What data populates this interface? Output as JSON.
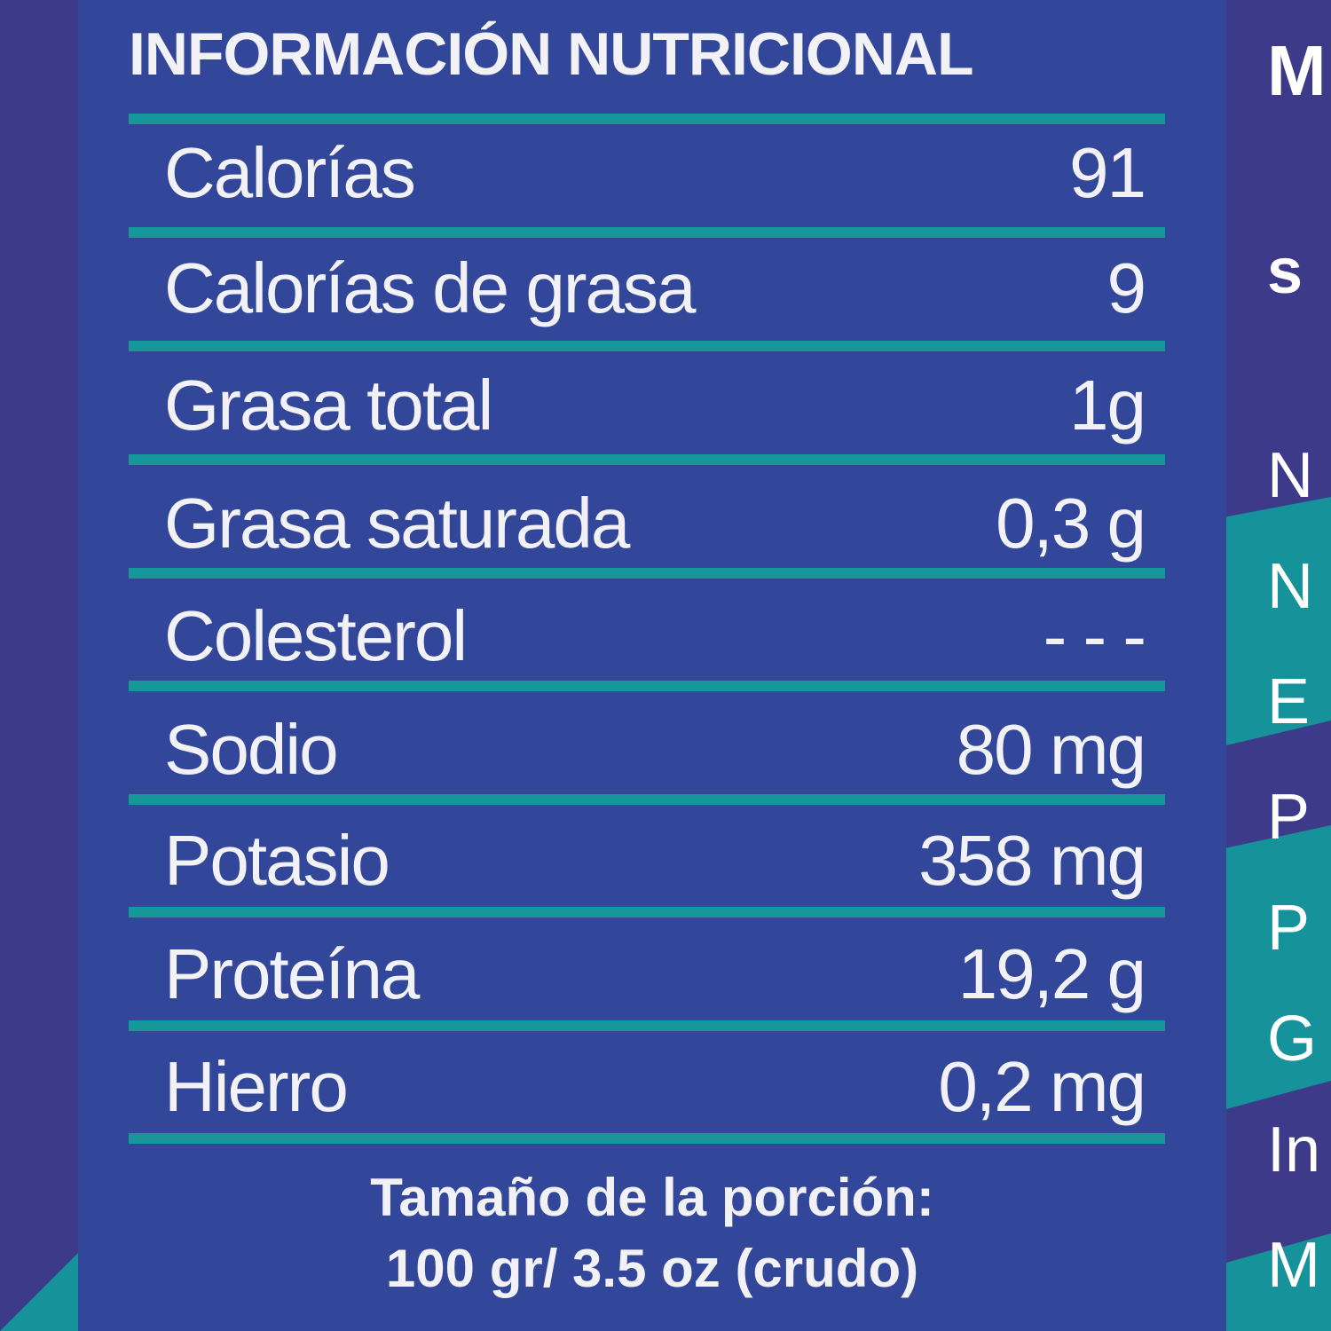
{
  "title": "INFORMACIÓN NUTRICIONAL",
  "rows": [
    {
      "label": "Calorías",
      "value": "91"
    },
    {
      "label": "Calorías de grasa",
      "value": "9"
    },
    {
      "label": "Grasa total",
      "value": "1g"
    },
    {
      "label": "Grasa saturada",
      "value": "0,3 g"
    },
    {
      "label": "Colesterol",
      "value": "- - -"
    },
    {
      "label": "Sodio",
      "value": "80 mg"
    },
    {
      "label": "Potasio",
      "value": "358 mg"
    },
    {
      "label": "Proteína",
      "value": "19,2 g"
    },
    {
      "label": "Hierro",
      "value": "0,2 mg"
    }
  ],
  "footer": {
    "line1": "Tamaño de la porción:",
    "line2": "100 gr/ 3.5 oz (crudo)"
  },
  "side_letters": [
    "M",
    "s",
    "N",
    "N",
    "E",
    "P",
    "P",
    "G",
    "In",
    "M"
  ],
  "colors": {
    "background": "#3d3a8a",
    "panel": "#33479a",
    "accent": "#16979a",
    "text": "#f2f2f6"
  }
}
